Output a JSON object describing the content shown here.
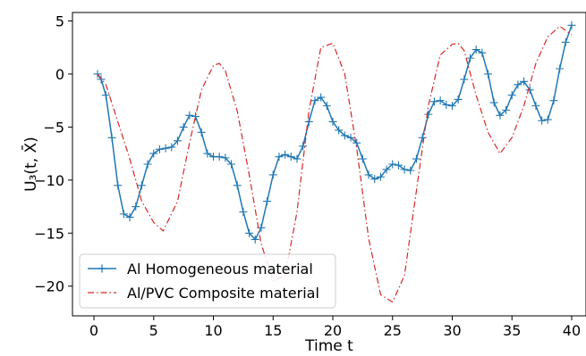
{
  "chart_data": {
    "type": "line",
    "xlabel": "Time t",
    "ylabel": "U₃(t, X̄)",
    "xlim": [
      -1.8,
      41.2
    ],
    "ylim": [
      -22.8,
      5.8
    ],
    "xticks": [
      0,
      5,
      10,
      15,
      20,
      25,
      30,
      35,
      40
    ],
    "yticks": [
      5,
      0,
      -5,
      -10,
      -15,
      -20
    ],
    "xtick_labels": [
      "0",
      "5",
      "10",
      "15",
      "20",
      "25",
      "30",
      "35",
      "40"
    ],
    "ytick_labels": [
      "5",
      "0",
      "−5",
      "−10",
      "−15",
      "−20"
    ],
    "grid": false,
    "legend_position": "lower-left",
    "series": [
      {
        "name": "Al Homogeneous material",
        "color": "#1f77b4",
        "style": "solid",
        "marker": "plus",
        "x": [
          0.3,
          0.6,
          1.0,
          1.5,
          2.0,
          2.5,
          3.0,
          3.5,
          4.0,
          4.5,
          5.0,
          5.5,
          6.0,
          6.5,
          7.0,
          7.5,
          8.0,
          8.5,
          9.0,
          9.5,
          10.0,
          10.5,
          11.0,
          11.5,
          12.0,
          12.5,
          13.0,
          13.5,
          14.0,
          14.5,
          15.0,
          15.5,
          16.0,
          16.5,
          17.0,
          17.5,
          18.0,
          18.5,
          19.0,
          19.5,
          20.0,
          20.5,
          21.0,
          21.5,
          22.0,
          22.5,
          23.0,
          23.5,
          24.0,
          24.5,
          25.0,
          25.5,
          26.0,
          26.5,
          27.0,
          27.5,
          28.0,
          28.5,
          29.0,
          29.5,
          30.0,
          30.5,
          31.0,
          31.5,
          32.0,
          32.5,
          33.0,
          33.5,
          34.0,
          34.5,
          35.0,
          35.5,
          36.0,
          36.5,
          37.0,
          37.5,
          38.0,
          38.5,
          39.0,
          39.5,
          40.0
        ],
        "y": [
          0.0,
          -0.5,
          -2.0,
          -6.0,
          -10.5,
          -13.2,
          -13.5,
          -12.5,
          -10.5,
          -8.5,
          -7.5,
          -7.1,
          -7.0,
          -6.9,
          -6.3,
          -5.0,
          -3.9,
          -4.0,
          -5.5,
          -7.5,
          -7.8,
          -7.8,
          -7.9,
          -8.5,
          -10.5,
          -13.0,
          -15.0,
          -15.6,
          -14.5,
          -12.0,
          -9.5,
          -7.8,
          -7.6,
          -7.8,
          -8.0,
          -6.8,
          -4.5,
          -2.5,
          -2.2,
          -3.0,
          -4.5,
          -5.3,
          -5.8,
          -6.0,
          -6.5,
          -8.0,
          -9.5,
          -9.9,
          -9.7,
          -9.0,
          -8.5,
          -8.6,
          -9.0,
          -9.1,
          -8.0,
          -6.0,
          -3.8,
          -2.6,
          -2.5,
          -2.9,
          -3.0,
          -2.4,
          -0.5,
          1.5,
          2.3,
          2.0,
          0.0,
          -2.7,
          -3.9,
          -3.4,
          -2.0,
          -1.0,
          -0.7,
          -1.5,
          -3.0,
          -4.4,
          -4.3,
          -2.5,
          0.5,
          3.0,
          4.6
        ]
      },
      {
        "name": "Al/PVC Composite material",
        "color": "#d62728",
        "style": "dashdot",
        "marker": "none",
        "x": [
          0.3,
          1.0,
          2.0,
          3.0,
          4.0,
          5.0,
          5.8,
          7.0,
          8.0,
          9.0,
          10.0,
          10.5,
          11.0,
          12.0,
          13.0,
          14.0,
          15.0,
          16.0,
          17.0,
          18.0,
          19.0,
          20.0,
          21.0,
          22.0,
          23.0,
          24.0,
          25.0,
          26.0,
          27.0,
          28.0,
          29.0,
          30.0,
          30.5,
          31.0,
          32.0,
          33.0,
          34.0,
          35.0,
          36.0,
          37.0,
          38.0,
          39.0,
          40.0
        ],
        "y": [
          0.0,
          -1.0,
          -4.5,
          -8.0,
          -12.0,
          -14.0,
          -14.8,
          -12.0,
          -6.5,
          -1.5,
          0.8,
          1.0,
          0.3,
          -3.5,
          -9.5,
          -16.0,
          -19.5,
          -19.0,
          -13.0,
          -3.5,
          2.5,
          2.9,
          0.0,
          -7.0,
          -15.5,
          -20.8,
          -21.5,
          -19.0,
          -11.0,
          -3.0,
          1.8,
          2.8,
          2.9,
          2.2,
          -2.0,
          -5.5,
          -7.5,
          -6.0,
          -3.0,
          1.0,
          3.5,
          4.5,
          3.7
        ]
      }
    ]
  }
}
